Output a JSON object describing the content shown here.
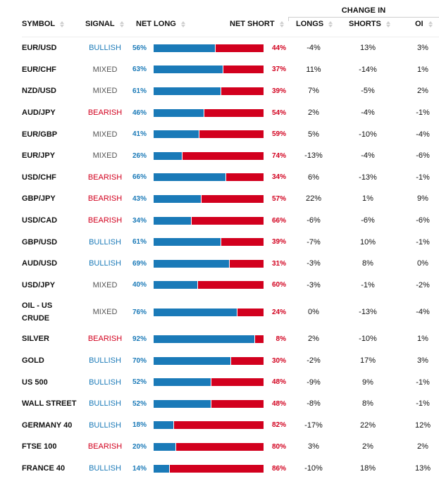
{
  "header": {
    "group_label": "CHANGE IN",
    "columns": {
      "symbol": "SYMBOL",
      "signal": "SIGNAL",
      "net_long": "NET LONG",
      "net_short": "NET SHORT",
      "longs": "LONGS",
      "shorts": "SHORTS",
      "oi": "OI"
    },
    "sort_icon": "sort-updown-icon"
  },
  "colors": {
    "bullish": "#1b7ab8",
    "bearish": "#d2001e",
    "mixed": "#555555",
    "long_bar": "#1a7ab8",
    "short_bar": "#d2001e"
  },
  "rows": [
    {
      "symbol": "EUR/USD",
      "signal": "BULLISH",
      "net_long": "56%",
      "net_short": "44%",
      "long_pct": 56,
      "longs": "-4%",
      "shorts": "13%",
      "oi": "3%"
    },
    {
      "symbol": "EUR/CHF",
      "signal": "MIXED",
      "net_long": "63%",
      "net_short": "37%",
      "long_pct": 63,
      "longs": "11%",
      "shorts": "-14%",
      "oi": "1%"
    },
    {
      "symbol": "NZD/USD",
      "signal": "MIXED",
      "net_long": "61%",
      "net_short": "39%",
      "long_pct": 61,
      "longs": "7%",
      "shorts": "-5%",
      "oi": "2%"
    },
    {
      "symbol": "AUD/JPY",
      "signal": "BEARISH",
      "net_long": "46%",
      "net_short": "54%",
      "long_pct": 46,
      "longs": "2%",
      "shorts": "-4%",
      "oi": "-1%"
    },
    {
      "symbol": "EUR/GBP",
      "signal": "MIXED",
      "net_long": "41%",
      "net_short": "59%",
      "long_pct": 41,
      "longs": "5%",
      "shorts": "-10%",
      "oi": "-4%"
    },
    {
      "symbol": "EUR/JPY",
      "signal": "MIXED",
      "net_long": "26%",
      "net_short": "74%",
      "long_pct": 26,
      "longs": "-13%",
      "shorts": "-4%",
      "oi": "-6%"
    },
    {
      "symbol": "USD/CHF",
      "signal": "BEARISH",
      "net_long": "66%",
      "net_short": "34%",
      "long_pct": 66,
      "longs": "6%",
      "shorts": "-13%",
      "oi": "-1%"
    },
    {
      "symbol": "GBP/JPY",
      "signal": "BEARISH",
      "net_long": "43%",
      "net_short": "57%",
      "long_pct": 43,
      "longs": "22%",
      "shorts": "1%",
      "oi": "9%"
    },
    {
      "symbol": "USD/CAD",
      "signal": "BEARISH",
      "net_long": "34%",
      "net_short": "66%",
      "long_pct": 34,
      "longs": "-6%",
      "shorts": "-6%",
      "oi": "-6%"
    },
    {
      "symbol": "GBP/USD",
      "signal": "BULLISH",
      "net_long": "61%",
      "net_short": "39%",
      "long_pct": 61,
      "longs": "-7%",
      "shorts": "10%",
      "oi": "-1%"
    },
    {
      "symbol": "AUD/USD",
      "signal": "BULLISH",
      "net_long": "69%",
      "net_short": "31%",
      "long_pct": 69,
      "longs": "-3%",
      "shorts": "8%",
      "oi": "0%"
    },
    {
      "symbol": "USD/JPY",
      "signal": "MIXED",
      "net_long": "40%",
      "net_short": "60%",
      "long_pct": 40,
      "longs": "-3%",
      "shorts": "-1%",
      "oi": "-2%"
    },
    {
      "symbol": "OIL - US CRUDE",
      "symbol_lines": [
        "OIL - US",
        "CRUDE"
      ],
      "signal": "MIXED",
      "net_long": "76%",
      "net_short": "24%",
      "long_pct": 76,
      "longs": "0%",
      "shorts": "-13%",
      "oi": "-4%"
    },
    {
      "symbol": "SILVER",
      "signal": "BEARISH",
      "net_long": "92%",
      "net_short": "8%",
      "long_pct": 92,
      "longs": "2%",
      "shorts": "-10%",
      "oi": "1%"
    },
    {
      "symbol": "GOLD",
      "signal": "BULLISH",
      "net_long": "70%",
      "net_short": "30%",
      "long_pct": 70,
      "longs": "-2%",
      "shorts": "17%",
      "oi": "3%"
    },
    {
      "symbol": "US 500",
      "signal": "BULLISH",
      "net_long": "52%",
      "net_short": "48%",
      "long_pct": 52,
      "longs": "-9%",
      "shorts": "9%",
      "oi": "-1%"
    },
    {
      "symbol": "WALL STREET",
      "signal": "BULLISH",
      "net_long": "52%",
      "net_short": "48%",
      "long_pct": 52,
      "longs": "-8%",
      "shorts": "8%",
      "oi": "-1%"
    },
    {
      "symbol": "GERMANY 40",
      "signal": "BULLISH",
      "net_long": "18%",
      "net_short": "82%",
      "long_pct": 18,
      "longs": "-17%",
      "shorts": "22%",
      "oi": "12%"
    },
    {
      "symbol": "FTSE 100",
      "signal": "BEARISH",
      "net_long": "20%",
      "net_short": "80%",
      "long_pct": 20,
      "longs": "3%",
      "shorts": "2%",
      "oi": "2%"
    },
    {
      "symbol": "FRANCE 40",
      "signal": "BULLISH",
      "net_long": "14%",
      "net_short": "86%",
      "long_pct": 14,
      "longs": "-10%",
      "shorts": "18%",
      "oi": "13%"
    }
  ]
}
